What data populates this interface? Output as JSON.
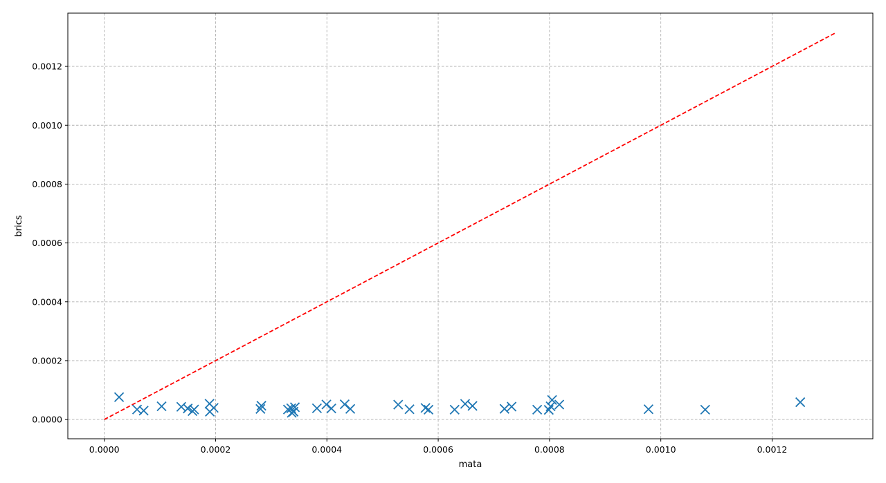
{
  "chart_data": {
    "type": "scatter",
    "title": "",
    "xlabel": "mata",
    "ylabel": "brics",
    "xlim": [
      -6.55e-05,
      0.001381
    ],
    "ylim": [
      -6.55e-05,
      0.001381
    ],
    "x_ticks": [
      0.0,
      0.0002,
      0.0004,
      0.0006,
      0.0008,
      0.001,
      0.0012
    ],
    "x_tick_labels": [
      "0.0000",
      "0.0002",
      "0.0004",
      "0.0006",
      "0.0008",
      "0.0010",
      "0.0012"
    ],
    "y_ticks": [
      0.0,
      0.0002,
      0.0004,
      0.0006,
      0.0008,
      0.001,
      0.0012
    ],
    "y_tick_labels": [
      "0.0000",
      "0.0002",
      "0.0004",
      "0.0006",
      "0.0008",
      "0.0010",
      "0.0012"
    ],
    "grid": true,
    "series": [
      {
        "marker": "x",
        "color": "#1f77b4",
        "points": [
          [
            2.66e-05,
            7.59e-05
          ],
          [
            5.89e-05,
            3.4e-05
          ],
          [
            7.08e-05,
            3.02e-05
          ],
          [
            0.000103,
            4.49e-05
          ],
          [
            0.0001383,
            4.31e-05
          ],
          [
            0.00015,
            3.74e-05
          ],
          [
            0.0001585,
            2.84e-05
          ],
          [
            0.0001614,
            3.4e-05
          ],
          [
            0.0001891,
            5.36e-05
          ],
          [
            0.0001897,
            2.65e-05
          ],
          [
            0.0001966,
            3.95e-05
          ],
          [
            0.0002806,
            3.59e-05
          ],
          [
            0.0002823,
            4.68e-05
          ],
          [
            0.00033,
            3.4e-05
          ],
          [
            0.0003359,
            3.8e-05
          ],
          [
            0.0003369,
            2.28e-05
          ],
          [
            0.0003401,
            2.65e-05
          ],
          [
            0.0003425,
            4.17e-05
          ],
          [
            0.0003821,
            3.81e-05
          ],
          [
            0.0003991,
            5.1e-05
          ],
          [
            0.000408,
            3.76e-05
          ],
          [
            0.0004319,
            5.17e-05
          ],
          [
            0.000442,
            3.6e-05
          ],
          [
            0.0005281,
            5.04e-05
          ],
          [
            0.0005484,
            3.48e-05
          ],
          [
            0.0005771,
            3.92e-05
          ],
          [
            0.0005826,
            3.35e-05
          ],
          [
            0.0006295,
            3.34e-05
          ],
          [
            0.0006484,
            5.3e-05
          ],
          [
            0.0006616,
            4.62e-05
          ],
          [
            0.0007191,
            3.62e-05
          ],
          [
            0.0007319,
            4.38e-05
          ],
          [
            0.0007779,
            3.34e-05
          ],
          [
            0.0007987,
            3.27e-05
          ],
          [
            0.000802,
            4.49e-05
          ],
          [
            0.0008046,
            6.64e-05
          ],
          [
            0.0008176,
            5.08e-05
          ],
          [
            0.0009779,
            3.49e-05
          ],
          [
            0.0010797,
            3.35e-05
          ],
          [
            0.0012506,
            5.88e-05
          ]
        ]
      }
    ],
    "reference_line": {
      "style": "dashed",
      "color": "#ff0000",
      "x": [
        0.0,
        0.001313
      ],
      "y": [
        0.0,
        0.001313
      ]
    }
  }
}
